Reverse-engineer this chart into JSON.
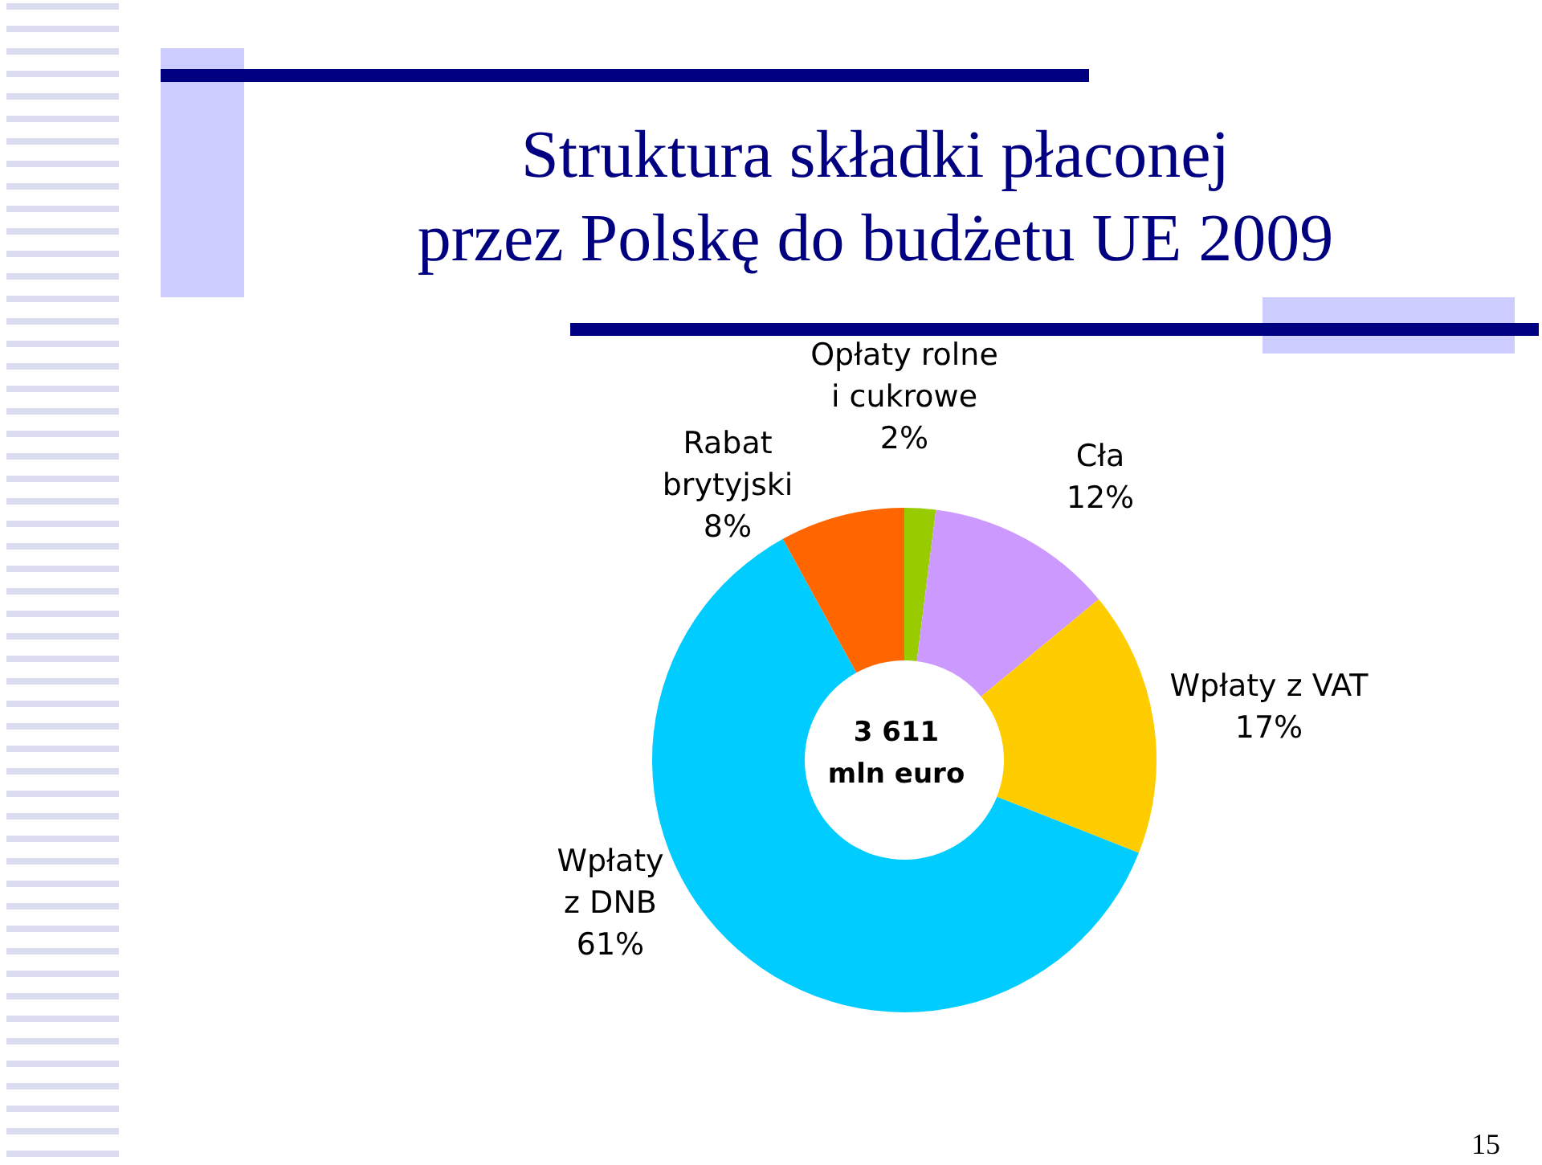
{
  "chart_data": {
    "type": "donut",
    "title": "Struktura składki płaconej\nprzez Polskę do budżetu UE 2009",
    "categories": [
      "Opłaty rolne\ni cukrowe",
      "Cła",
      "Wpłaty z VAT",
      "Wpłaty\nz DNB",
      "Rabat\nbrytyjski"
    ],
    "values": [
      2,
      12,
      17,
      61,
      8
    ],
    "value_labels": [
      "2%",
      "12%",
      "17%",
      "61%",
      "8%"
    ],
    "colors": [
      "#99cc00",
      "#cc99ff",
      "#ffcc00",
      "#00ccff",
      "#ff6600"
    ],
    "annotations": [
      "3 611\nmln euro",
      "15"
    ]
  }
}
